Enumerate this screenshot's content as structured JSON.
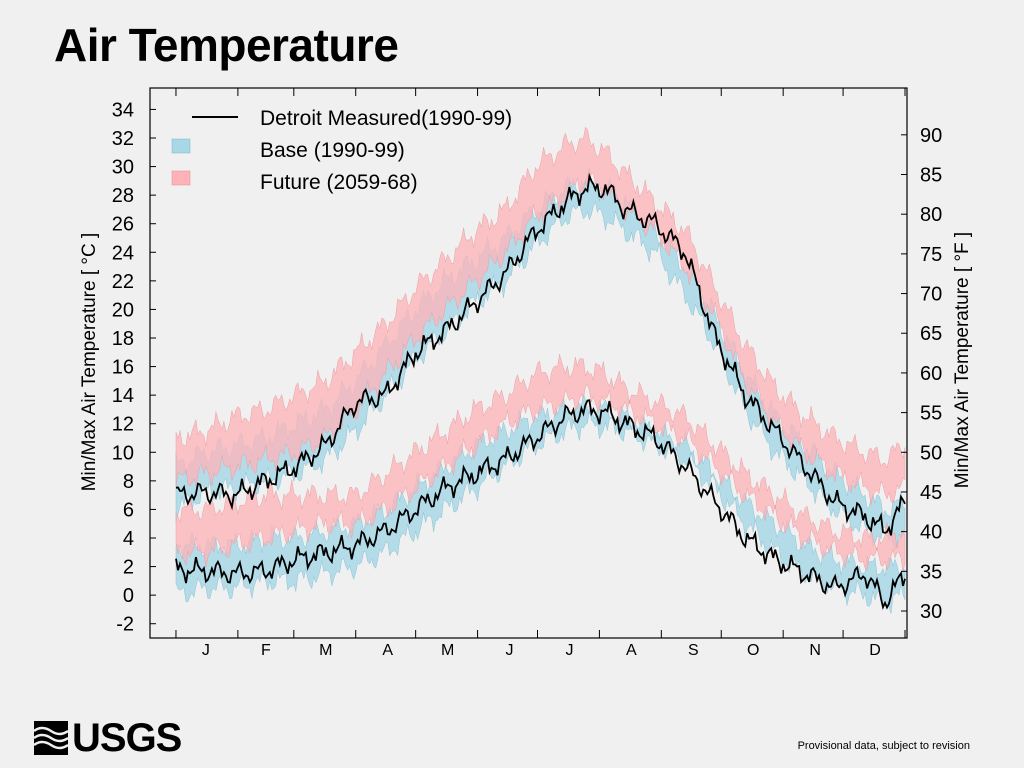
{
  "slide": {
    "title": "Air Temperature",
    "logo_text": "USGS",
    "footnote": "Provisional data, subject to revision"
  },
  "colors": {
    "background": "#f0f0f0",
    "base_band": "#a8d8e6",
    "future_band": "#ffb3b8",
    "measured_line": "#000000"
  },
  "chart_data": {
    "type": "area",
    "ylabel_left": "Min/Max Air Temperature [ °C ]",
    "ylabel_right": "Min/Max Air Temperature [ °F ]",
    "ylim_c": [
      -3,
      35.5
    ],
    "yticks_c": [
      -2,
      0,
      2,
      4,
      6,
      8,
      10,
      12,
      14,
      16,
      18,
      20,
      22,
      24,
      26,
      28,
      30,
      32,
      34
    ],
    "yticks_f": [
      30,
      35,
      40,
      45,
      50,
      55,
      60,
      65,
      70,
      75,
      80,
      85,
      90
    ],
    "xlim_day": [
      -13,
      366
    ],
    "months": [
      "J",
      "F",
      "M",
      "A",
      "M",
      "J",
      "J",
      "A",
      "S",
      "O",
      "N",
      "D"
    ],
    "month_label_days": [
      15,
      45,
      75,
      106,
      136,
      167,
      197,
      228,
      259,
      289,
      320,
      350
    ],
    "month_boundary_days": [
      0,
      31,
      59,
      90,
      120,
      151,
      181,
      212,
      243,
      273,
      304,
      334,
      365
    ],
    "legend": {
      "position": "top-left",
      "entries": [
        {
          "label": "Detroit Measured(1990-99)",
          "kind": "line"
        },
        {
          "label": "Base (1990-99)",
          "kind": "band-base"
        },
        {
          "label": "Future (2059-68)",
          "kind": "band-future"
        }
      ]
    },
    "days": [
      0,
      15,
      30,
      45,
      60,
      75,
      90,
      105,
      120,
      135,
      150,
      165,
      180,
      195,
      205,
      215,
      225,
      240,
      255,
      270,
      285,
      300,
      315,
      330,
      345,
      355,
      365
    ],
    "series": [
      {
        "name": "Base (1990-99) max",
        "low": [
          6.0,
          7.2,
          7.5,
          8.0,
          8.5,
          9.5,
          11.5,
          14.0,
          16.5,
          18.5,
          20.5,
          22.0,
          24.5,
          26.5,
          27.0,
          26.5,
          25.5,
          24.0,
          21.0,
          17.5,
          13.0,
          10.0,
          8.0,
          6.0,
          4.5,
          4.0,
          4.0
        ],
        "high": [
          9.0,
          10.0,
          10.5,
          11.0,
          12.0,
          13.0,
          15.0,
          17.5,
          20.0,
          22.0,
          23.5,
          25.0,
          27.0,
          28.5,
          29.0,
          28.5,
          27.5,
          25.5,
          23.0,
          19.5,
          15.5,
          12.5,
          10.5,
          8.5,
          7.0,
          6.0,
          6.5
        ]
      },
      {
        "name": "Future (2059-68) max",
        "low": [
          8.0,
          8.5,
          9.0,
          9.5,
          10.0,
          11.0,
          13.0,
          15.5,
          18.0,
          20.0,
          22.0,
          24.0,
          26.5,
          28.0,
          29.0,
          28.5,
          27.0,
          25.5,
          23.0,
          19.5,
          15.0,
          12.0,
          10.0,
          8.5,
          7.5,
          7.0,
          7.5
        ],
        "high": [
          11.0,
          11.5,
          12.5,
          13.0,
          14.0,
          15.0,
          17.0,
          19.0,
          21.5,
          23.5,
          25.5,
          27.0,
          30.0,
          31.5,
          32.0,
          31.0,
          29.5,
          27.5,
          25.5,
          21.5,
          17.5,
          14.5,
          12.5,
          11.0,
          10.0,
          9.5,
          10.5
        ]
      },
      {
        "name": "Base (1990-99) min",
        "low": [
          0.0,
          0.5,
          0.5,
          1.0,
          1.0,
          1.5,
          2.0,
          3.0,
          4.5,
          6.0,
          7.5,
          9.0,
          10.5,
          11.5,
          12.0,
          11.8,
          11.5,
          10.5,
          9.5,
          7.5,
          5.0,
          3.0,
          1.5,
          0.5,
          0.0,
          -0.5,
          0.0
        ],
        "high": [
          3.5,
          3.5,
          3.5,
          4.0,
          4.0,
          4.5,
          5.0,
          6.0,
          7.5,
          9.0,
          10.5,
          11.5,
          12.5,
          13.0,
          13.2,
          13.0,
          12.5,
          11.5,
          10.5,
          8.5,
          6.5,
          5.0,
          3.5,
          2.5,
          2.0,
          2.0,
          2.0
        ]
      },
      {
        "name": "Future (2059-68) min",
        "low": [
          3.0,
          3.0,
          3.5,
          4.0,
          4.5,
          5.0,
          5.0,
          6.0,
          7.5,
          9.0,
          10.5,
          12.0,
          13.0,
          13.5,
          14.0,
          13.5,
          13.0,
          12.0,
          11.0,
          9.0,
          7.0,
          5.5,
          4.0,
          3.0,
          2.5,
          2.5,
          2.5
        ],
        "high": [
          6.0,
          6.0,
          6.5,
          7.0,
          7.0,
          7.0,
          7.0,
          8.5,
          10.0,
          11.5,
          13.0,
          14.0,
          15.5,
          16.0,
          16.0,
          15.5,
          14.5,
          13.5,
          12.5,
          10.5,
          8.5,
          7.0,
          5.5,
          4.5,
          4.0,
          4.0,
          4.5
        ]
      },
      {
        "name": "Detroit Measured max",
        "values": [
          7.0,
          7.2,
          7.0,
          8.0,
          9.0,
          10.5,
          13.5,
          14.0,
          17.0,
          18.5,
          20.5,
          22.5,
          25.5,
          27.5,
          28.5,
          28.5,
          27.0,
          26.0,
          24.0,
          18.0,
          14.0,
          11.5,
          9.0,
          6.5,
          5.5,
          4.5,
          6.5
        ]
      },
      {
        "name": "Detroit Measured min",
        "values": [
          1.8,
          1.7,
          1.5,
          1.7,
          2.5,
          3.0,
          3.5,
          4.5,
          6.0,
          7.5,
          8.5,
          9.5,
          11.0,
          12.5,
          13.0,
          12.8,
          12.0,
          11.0,
          9.0,
          6.5,
          4.0,
          2.5,
          1.5,
          0.5,
          1.5,
          -0.5,
          1.5
        ]
      }
    ]
  }
}
